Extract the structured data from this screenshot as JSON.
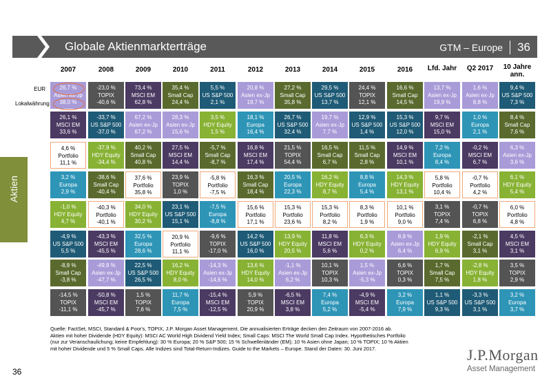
{
  "header": {
    "title": "Globale Aktienmarkterträge",
    "section": "GTM – Europe",
    "page": "36"
  },
  "years": [
    "2007",
    "2008",
    "2009",
    "2010",
    "2011",
    "2012",
    "2013",
    "2014",
    "2015",
    "2016",
    "Lfd. Jahr",
    "Q2 2017",
    "10 Jahre ann."
  ],
  "row_labels": {
    "eur": "EUR",
    "local": "Lokalwährung"
  },
  "side_label": "Aktien",
  "colors": {
    "em": "#4b3a62",
    "asia": "#a99bd8",
    "sc": "#5a6a2e",
    "us": "#1f5b76",
    "topix": "#545454",
    "eu": "#2e95b7",
    "hdy": "#88b234",
    "pf": "#ffffff",
    "highlight": "#e46c3a"
  },
  "grid": [
    [
      {
        "a": "26,7 %",
        "n": "Asien ex-Jp",
        "b": "38,0 %",
        "c": "asia"
      },
      {
        "a": "-23,0 %",
        "n": "TOPIX",
        "b": "-40,6 %",
        "c": "topix"
      },
      {
        "a": "73,4 %",
        "n": "MSCI EM",
        "b": "62,8 %",
        "c": "em"
      },
      {
        "a": "35,4 %",
        "n": "Small Cap",
        "b": "24,4 %",
        "c": "sc"
      },
      {
        "a": "5,5 %",
        "n": "US S&P 500",
        "b": "2,1 %",
        "c": "us"
      },
      {
        "a": "20,8 %",
        "n": "Asien ex-Jp",
        "b": "19,7 %",
        "c": "asia"
      },
      {
        "a": "27,2 %",
        "n": "Small Cap",
        "b": "35,8 %",
        "c": "sc"
      },
      {
        "a": "29,5 %",
        "n": "US S&P 500",
        "b": "13,7 %",
        "c": "us"
      },
      {
        "a": "24,4 %",
        "n": "TOPIX",
        "b": "12,1 %",
        "c": "topix"
      },
      {
        "a": "16,6 %",
        "n": "Small Cap",
        "b": "14,5 %",
        "c": "sc"
      },
      {
        "a": "13,7 %",
        "n": "Asien ex-Jp",
        "b": "19,9 %",
        "c": "asia"
      },
      {
        "a": "1,6 %",
        "n": "Asien ex-Jp",
        "b": "8,8 %",
        "c": "asia"
      },
      {
        "a": "9,4 %",
        "n": "US S&P 500",
        "b": "7,3 %",
        "c": "us"
      }
    ],
    [
      {
        "a": "26,1 %",
        "n": "MSCI EM",
        "b": "33,6 %",
        "c": "em"
      },
      {
        "a": "-33,7 %",
        "n": "US S&P 500",
        "b": "-37,0 %",
        "c": "us"
      },
      {
        "a": "67,2 %",
        "n": "Asien ex-Jp",
        "b": "67,2 %",
        "c": "asia"
      },
      {
        "a": "28,3 %",
        "n": "Asien ex-Jp",
        "b": "15,6 %",
        "c": "asia"
      },
      {
        "a": "3,5 %",
        "n": "HDY Equity",
        "b": "1,5 %",
        "c": "hdy"
      },
      {
        "a": "18,1 %",
        "n": "Europa",
        "b": "16,4 %",
        "c": "eu"
      },
      {
        "a": "26,7 %",
        "n": "US S&P 500",
        "b": "32,4 %",
        "c": "us"
      },
      {
        "a": "19,7 %",
        "n": "Asien ex-Jp",
        "b": "7,7 %",
        "c": "asia"
      },
      {
        "a": "12,9 %",
        "n": "US S&P 500",
        "b": "1,4 %",
        "c": "us"
      },
      {
        "a": "15,3 %",
        "n": "US S&P 500",
        "b": "12,0 %",
        "c": "us"
      },
      {
        "a": "9,7 %",
        "n": "MSCI EM",
        "b": "15,0 %",
        "c": "em"
      },
      {
        "a": "1,0 %",
        "n": "Europa",
        "b": "2,1 %",
        "c": "eu"
      },
      {
        "a": "8,4 %",
        "n": "Small Cap",
        "b": "7,6 %",
        "c": "sc"
      }
    ],
    [
      {
        "a": "4,6 %",
        "n": "Portfolio",
        "b": "11,1 %",
        "c": "pf"
      },
      {
        "a": "-37,9 %",
        "n": "HDY Equity",
        "b": "-34,4 %",
        "c": "hdy"
      },
      {
        "a": "40,2 %",
        "n": "Small Cap",
        "b": "40,8 %",
        "c": "sc"
      },
      {
        "a": "27,5 %",
        "n": "MSCI EM",
        "b": "14,4 %",
        "c": "em"
      },
      {
        "a": "-5,7 %",
        "n": "Small Cap",
        "b": "-8,7 %",
        "c": "sc"
      },
      {
        "a": "16,8 %",
        "n": "MSCI EM",
        "b": "17,4 %",
        "c": "em"
      },
      {
        "a": "21,5 %",
        "n": "TOPIX",
        "b": "54,4 %",
        "c": "topix"
      },
      {
        "a": "16,5 %",
        "n": "Small Cap",
        "b": "6,7 %",
        "c": "sc"
      },
      {
        "a": "11,5 %",
        "n": "Small Cap",
        "b": "2,8 %",
        "c": "sc"
      },
      {
        "a": "14,9 %",
        "n": "MSCI EM",
        "b": "10,1 %",
        "c": "em"
      },
      {
        "a": "7,2 %",
        "n": "Europa",
        "b": "8,4 %",
        "c": "eu"
      },
      {
        "a": "-0,2 %",
        "n": "MSCI EM",
        "b": "6,7 %",
        "c": "em"
      },
      {
        "a": "6,3 %",
        "n": "Asien ex-Jp",
        "b": "3,6 %",
        "c": "asia"
      }
    ],
    [
      {
        "a": "3,2 %",
        "n": "Europa",
        "b": "2,9 %",
        "c": "eu"
      },
      {
        "a": "-38,6 %",
        "n": "Small Cap",
        "b": "-40,4 %",
        "c": "sc"
      },
      {
        "a": "37,6 %",
        "n": "Portfolio",
        "b": "35,8 %",
        "c": "pf"
      },
      {
        "a": "23,9 %",
        "n": "TOPIX",
        "b": "1,0 %",
        "c": "topix"
      },
      {
        "a": "-5,8 %",
        "n": "Portfolio",
        "b": "-7,5 %",
        "c": "pf"
      },
      {
        "a": "16,3 %",
        "n": "Small Cap",
        "b": "18,4 %",
        "c": "sc"
      },
      {
        "a": "20,5 %",
        "n": "Europa",
        "b": "22,3 %",
        "c": "eu"
      },
      {
        "a": "16,2 %",
        "n": "HDY Equity",
        "b": "8,7 %",
        "c": "hdy"
      },
      {
        "a": "8,8 %",
        "n": "Europa",
        "b": "5,4 %",
        "c": "eu"
      },
      {
        "a": "14,3 %",
        "n": "HDY Equity",
        "b": "13,1 %",
        "c": "hdy"
      },
      {
        "a": "5,8 %",
        "n": "Portfolio",
        "b": "10,4 %",
        "c": "pf"
      },
      {
        "a": "-0,7 %",
        "n": "Portfolio",
        "b": "4,2 %",
        "c": "pf"
      },
      {
        "a": "6,1 %",
        "n": "HDY Equity",
        "b": "5,4 %",
        "c": "hdy"
      }
    ],
    [
      {
        "a": "-1,0 %",
        "n": "HDY Equity",
        "b": "4,7 %",
        "c": "hdy"
      },
      {
        "a": "-40,3 %",
        "n": "Portfolio",
        "b": "-40,1 %",
        "c": "pf"
      },
      {
        "a": "34,0 %",
        "n": "HDY Equity",
        "b": "30,2 %",
        "c": "hdy"
      },
      {
        "a": "23,1 %",
        "n": "US S&P 500",
        "b": "15,1 %",
        "c": "us"
      },
      {
        "a": "-7,5 %",
        "n": "Europa",
        "b": "-8,8 %",
        "c": "eu"
      },
      {
        "a": "15,6 %",
        "n": "Portfolio",
        "b": "17,1 %",
        "c": "pf"
      },
      {
        "a": "15,3 %",
        "n": "Portfolio",
        "b": "23,6 %",
        "c": "pf"
      },
      {
        "a": "15,3 %",
        "n": "Portfolio",
        "b": "8,2 %",
        "c": "pf"
      },
      {
        "a": "8,3 %",
        "n": "Portfolio",
        "b": "1,9 %",
        "c": "pf"
      },
      {
        "a": "10,1 %",
        "n": "Portfolio",
        "b": "9,0 %",
        "c": "pf"
      },
      {
        "a": "3,1 %",
        "n": "TOPIX",
        "b": "7,4 %",
        "c": "topix"
      },
      {
        "a": "-0,7 %",
        "n": "TOPIX",
        "b": "6,8 %",
        "c": "topix"
      },
      {
        "a": "6,0 %",
        "n": "Portfolio",
        "b": "4,8 %",
        "c": "pf"
      }
    ],
    [
      {
        "a": "-4,9 %",
        "n": "US S&P 500",
        "b": "5,5 %",
        "c": "us"
      },
      {
        "a": "-43,3 %",
        "n": "MSCI EM",
        "b": "-45,5 %",
        "c": "em"
      },
      {
        "a": "32,5 %",
        "n": "Europa",
        "b": "28,6 %",
        "c": "eu"
      },
      {
        "a": "20,9 %",
        "n": "Portfolio",
        "b": "11,1 %",
        "c": "pf"
      },
      {
        "a": "-9,6 %",
        "n": "TOPIX",
        "b": "-17,0 %",
        "c": "topix"
      },
      {
        "a": "14,2 %",
        "n": "US S&P 500",
        "b": "16,0 %",
        "c": "us"
      },
      {
        "a": "13,9 %",
        "n": "HDY Equity",
        "b": "20,5 %",
        "c": "hdy"
      },
      {
        "a": "11,8 %",
        "n": "MSCI EM",
        "b": "5,6 %",
        "c": "em"
      },
      {
        "a": "6,3 %",
        "n": "HDY Equity",
        "b": "0,2 %",
        "c": "hdy"
      },
      {
        "a": "8,9 %",
        "n": "Asien ex-Jp",
        "b": "6,4 %",
        "c": "asia"
      },
      {
        "a": "1,9 %",
        "n": "HDY Equity",
        "b": "6,9 %",
        "c": "hdy"
      },
      {
        "a": "-2,1 %",
        "n": "Small Cap",
        "b": "3,1 %",
        "c": "sc"
      },
      {
        "a": "4,5 %",
        "n": "MSCI EM",
        "b": "3,1 %",
        "c": "em"
      }
    ],
    [
      {
        "a": "-8,8 %",
        "n": "Small Cap",
        "b": "-3,8 %",
        "c": "sc"
      },
      {
        "a": "-49,8 %",
        "n": "Asien ex-Jp",
        "b": "-47,7 %",
        "c": "asia"
      },
      {
        "a": "22,5 %",
        "n": "US S&P 500",
        "b": "26,5 %",
        "c": "us"
      },
      {
        "a": "16,2 %",
        "n": "HDY Equity",
        "b": "8,0 %",
        "c": "hdy"
      },
      {
        "a": "-14,3 %",
        "n": "Asien ex-Jp",
        "b": "-14,6 %",
        "c": "asia"
      },
      {
        "a": "13,6 %",
        "n": "HDY Equity",
        "b": "14,0 %",
        "c": "hdy"
      },
      {
        "a": "-1,1 %",
        "n": "Asien ex-Jp",
        "b": "6,2 %",
        "c": "asia"
      },
      {
        "a": "10,1 %",
        "n": "TOPIX",
        "b": "10,3 %",
        "c": "topix"
      },
      {
        "a": "1,5 %",
        "n": "Asien ex-Jp",
        "b": "-5,3 %",
        "c": "asia"
      },
      {
        "a": "6,6 %",
        "n": "TOPIX",
        "b": "0,3 %",
        "c": "topix"
      },
      {
        "a": "1,7 %",
        "n": "Small Cap",
        "b": "7,5 %",
        "c": "sc"
      },
      {
        "a": "-2,8 %",
        "n": "HDY Equity",
        "b": "1,8 %",
        "c": "hdy"
      },
      {
        "a": "3,5 %",
        "n": "TOPIX",
        "b": "2,9 %",
        "c": "topix"
      }
    ],
    [
      {
        "a": "-14,5 %",
        "n": "TOPIX",
        "b": "-11,1 %",
        "c": "topix"
      },
      {
        "a": "-50,8 %",
        "n": "MSCI EM",
        "b": "-45,7 %",
        "c": "em"
      },
      {
        "a": "1,5 %",
        "n": "TOPIX",
        "b": "7,6 %",
        "c": "topix"
      },
      {
        "a": "11,7 %",
        "n": "Europa",
        "b": "7,5 %",
        "c": "eu"
      },
      {
        "a": "-15,4 %",
        "n": "MSCI EM",
        "b": "-12,5 %",
        "c": "em"
      },
      {
        "a": "5,9 %",
        "n": "TOPIX",
        "b": "20,9 %",
        "c": "topix"
      },
      {
        "a": "-6,5 %",
        "n": "MSCI EM",
        "b": "3,8 %",
        "c": "em"
      },
      {
        "a": "7,4 %",
        "n": "Europa",
        "b": "5,2 %",
        "c": "eu"
      },
      {
        "a": "-4,9 %",
        "n": "MSCI EM",
        "b": "-5,4 %",
        "c": "em"
      },
      {
        "a": "3,2 %",
        "n": "Europa",
        "b": "7,9 %",
        "c": "eu"
      },
      {
        "a": "1,1 %",
        "n": "US S&P 500",
        "b": "9,3 %",
        "c": "us"
      },
      {
        "a": "-3,3 %",
        "n": "US S&P 500",
        "b": "3,1 %",
        "c": "us"
      },
      {
        "a": "3,2 %",
        "n": "Europa",
        "b": "3,7 %",
        "c": "eu"
      }
    ]
  ],
  "footer": [
    "Quelle: FactSet, MSCI, Standard & Poor's, TOPIX, J.P. Morgan Asset Management. Die annualisierten Erträge decken den Zeitraum von 2007-2016 ab.",
    "Aktien mit hoher Dividende (HDY Equity): MSCI AC World High Dividend Yield Index; Small Caps: MSCI The World Small Cap Index. Hypothetisches Portfolio",
    "(nur zur Veranschaulichung; keine Empfehlung): 30 % Europa; 20 % S&P 500; 15 % Schwellenländer (EM); 10 % Asien ohne Japan; 10 % TOPIX; 10 % Aktien",
    "mit hoher Dividende und 5 % Small Caps. Alle Indizes sind Total-Return-Indizes. Guide to the Markets – Europe. Stand der Daten: 30. Juni 2017."
  ],
  "page_number": "36",
  "logo": {
    "name": "J.P.Morgan",
    "sub": "Asset Management"
  }
}
